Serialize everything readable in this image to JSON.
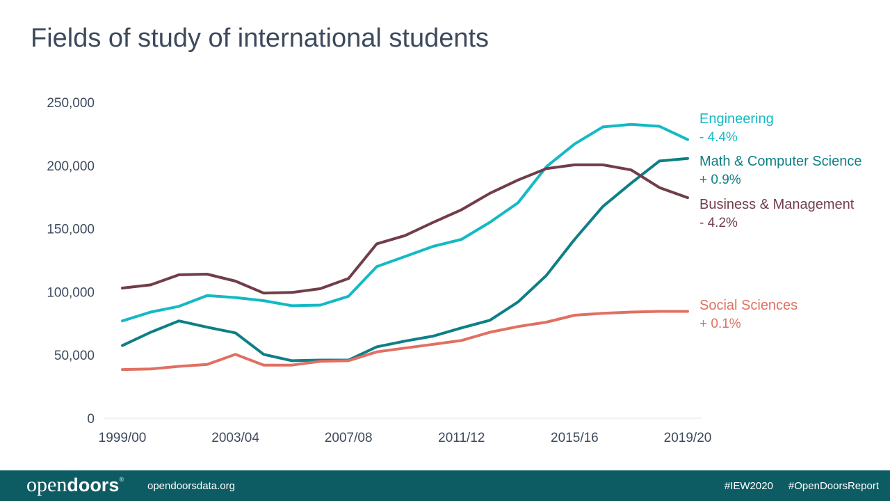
{
  "slide": {
    "title": "Fields of study of international students"
  },
  "footer": {
    "logo_light": "open",
    "logo_bold": "doors",
    "logo_mark": "®",
    "website": "opendoorsdata.org",
    "hashtags": [
      "#IEW2020",
      "#OpenDoorsReport"
    ],
    "background_color": "#0d5c63"
  },
  "chart_data": {
    "type": "line",
    "title": "Fields of study of international students",
    "xlabel": "",
    "ylabel": "",
    "ylim": [
      0,
      250000
    ],
    "yticks": [
      0,
      50000,
      100000,
      150000,
      200000,
      250000
    ],
    "ytick_labels": [
      "0",
      "50,000",
      "100,000",
      "150,000",
      "200,000",
      "250,000"
    ],
    "x": [
      "1999/00",
      "2000/01",
      "2001/02",
      "2002/03",
      "2003/04",
      "2004/05",
      "2005/06",
      "2006/07",
      "2007/08",
      "2008/09",
      "2009/10",
      "2010/11",
      "2011/12",
      "2012/13",
      "2013/14",
      "2014/15",
      "2015/16",
      "2016/17",
      "2017/18",
      "2018/19",
      "2019/20"
    ],
    "xtick_labels": [
      "1999/00",
      "2003/04",
      "2007/08",
      "2011/12",
      "2015/16",
      "2019/20"
    ],
    "grid": false,
    "series": [
      {
        "name": "Engineering",
        "change": "- 4.4%",
        "color": "#14b9c4",
        "values": [
          77000,
          84000,
          88500,
          97000,
          95500,
          93000,
          89000,
          89500,
          96500,
          120000,
          128000,
          136000,
          141500,
          155000,
          170500,
          199000,
          217000,
          230500,
          232500,
          231000,
          220500
        ]
      },
      {
        "name": "Math & Computer Science",
        "change": "+ 0.9%",
        "color": "#0e7f86",
        "values": [
          57500,
          68000,
          77000,
          72000,
          67500,
          50500,
          45500,
          46000,
          46000,
          56500,
          61000,
          65000,
          71500,
          77500,
          92000,
          113000,
          141500,
          167500,
          186000,
          203500,
          205500
        ]
      },
      {
        "name": "Business & Management",
        "change": "- 4.2%",
        "color": "#713d49",
        "values": [
          103000,
          105500,
          113500,
          114000,
          108500,
          99000,
          99500,
          102500,
          110500,
          138000,
          144500,
          155000,
          165000,
          178000,
          188500,
          197500,
          200500,
          200500,
          196500,
          182500,
          174500
        ]
      },
      {
        "name": "Social Sciences",
        "change": "+ 0.1%",
        "color": "#e07062",
        "values": [
          38500,
          39000,
          41000,
          42500,
          50500,
          42000,
          42000,
          45000,
          45500,
          52500,
          55500,
          58500,
          61500,
          68000,
          72500,
          76000,
          81500,
          83000,
          84000,
          84500,
          84500
        ]
      }
    ],
    "axis_color": "#3d4a5c",
    "baseline_color": "#e3e3e3"
  }
}
